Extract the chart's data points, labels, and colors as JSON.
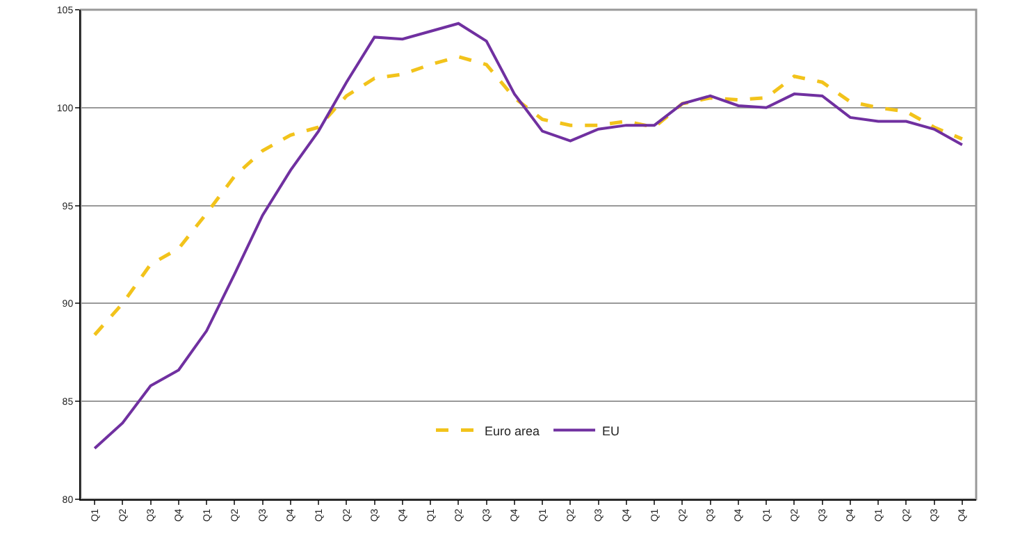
{
  "chart_data": {
    "type": "line",
    "categories": [
      "Q1",
      "Q2",
      "Q3",
      "Q4",
      "Q1",
      "Q2",
      "Q3",
      "Q4",
      "Q1",
      "Q2",
      "Q3",
      "Q4",
      "Q1",
      "Q2",
      "Q3",
      "Q4",
      "Q1",
      "Q2",
      "Q3",
      "Q4",
      "Q1",
      "Q2",
      "Q3",
      "Q4",
      "Q1",
      "Q2",
      "Q3",
      "Q4",
      "Q1",
      "Q2",
      "Q3",
      "Q4"
    ],
    "series": [
      {
        "name": "Euro area",
        "color": "#f2c31b",
        "line_style": "dashed",
        "values": [
          88.4,
          90.0,
          92.0,
          92.8,
          94.6,
          96.5,
          97.8,
          98.6,
          99.0,
          100.6,
          101.5,
          101.7,
          102.2,
          102.6,
          102.2,
          100.5,
          99.4,
          99.1,
          99.1,
          99.3,
          99.0,
          100.2,
          100.5,
          100.4,
          100.5,
          101.6,
          101.3,
          100.3,
          100.0,
          99.8,
          99.0,
          98.4
        ]
      },
      {
        "name": "EU",
        "color": "#7030a0",
        "line_style": "solid",
        "values": [
          82.6,
          83.9,
          85.8,
          86.6,
          88.6,
          91.5,
          94.5,
          96.8,
          98.8,
          101.3,
          103.6,
          103.5,
          103.9,
          104.3,
          103.4,
          100.7,
          98.8,
          98.3,
          98.9,
          99.1,
          99.1,
          100.2,
          100.6,
          100.1,
          100.0,
          100.7,
          100.6,
          99.5,
          99.3,
          99.3,
          98.9,
          98.1
        ]
      }
    ],
    "ylim": [
      80,
      105
    ],
    "yticks": [
      80,
      85,
      90,
      95,
      100,
      105
    ],
    "grid": "y",
    "legend": "bottom",
    "marker": "none"
  }
}
